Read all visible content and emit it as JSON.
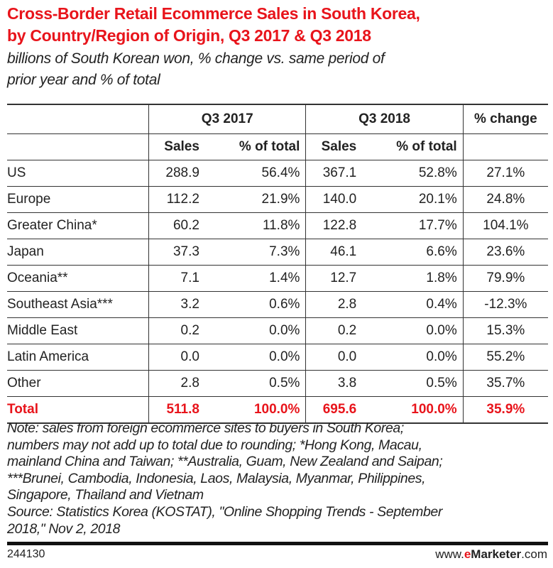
{
  "title": [
    "Cross-Border Retail Ecommerce Sales in South Korea,",
    "by Country/Region of Origin, Q3 2017 & Q3 2018"
  ],
  "subtitle": [
    "billions of South Korean won, % change vs. same period of",
    "prior year and % of total"
  ],
  "chart_data": {
    "type": "table",
    "group_headers": [
      "Q3 2017",
      "Q3 2018",
      "% change"
    ],
    "sub_headers": [
      "Sales",
      "% of total",
      "Sales",
      "% of total"
    ],
    "rows": [
      {
        "label": "US",
        "values": [
          "288.9",
          "56.4%",
          "367.1",
          "52.8%",
          "27.1%"
        ]
      },
      {
        "label": "Europe",
        "values": [
          "112.2",
          "21.9%",
          "140.0",
          "20.1%",
          "24.8%"
        ]
      },
      {
        "label": "Greater China*",
        "values": [
          "60.2",
          "11.8%",
          "122.8",
          "17.7%",
          "104.1%"
        ]
      },
      {
        "label": "Japan",
        "values": [
          "37.3",
          "7.3%",
          "46.1",
          "6.6%",
          "23.6%"
        ]
      },
      {
        "label": "Oceania**",
        "values": [
          "7.1",
          "1.4%",
          "12.7",
          "1.8%",
          "79.9%"
        ]
      },
      {
        "label": "Southeast Asia***",
        "values": [
          "3.2",
          "0.6%",
          "2.8",
          "0.4%",
          "-12.3%"
        ]
      },
      {
        "label": "Middle East",
        "values": [
          "0.2",
          "0.0%",
          "0.2",
          "0.0%",
          "15.3%"
        ]
      },
      {
        "label": "Latin America",
        "values": [
          "0.0",
          "0.0%",
          "0.0",
          "0.0%",
          "55.2%"
        ]
      },
      {
        "label": "Other",
        "values": [
          "2.8",
          "0.5%",
          "3.8",
          "0.5%",
          "35.7%"
        ]
      }
    ],
    "total": {
      "label": "Total",
      "values": [
        "511.8",
        "100.0%",
        "695.6",
        "100.0%",
        "35.9%"
      ]
    },
    "highlight_color": "#e8141b"
  },
  "note": [
    "Note: sales from foreign ecommerce sites to buyers in South Korea;",
    "numbers may not add up to total due to rounding; *Hong Kong, Macau,",
    "mainland China and Taiwan; **Australia, Guam, New Zealand and Saipan;",
    "***Brunei, Cambodia, Indonesia, Laos, Malaysia, Myanmar, Philippines,",
    "Singapore, Thailand and Vietnam",
    "Source: Statistics Korea (KOSTAT), \"Online Shopping Trends - September",
    "2018,\" Nov 2, 2018"
  ],
  "footer": {
    "id": "244130",
    "url_prefix": "www.",
    "url_brand_e": "e",
    "url_brand": "Marketer",
    "url_suffix": ".com"
  }
}
